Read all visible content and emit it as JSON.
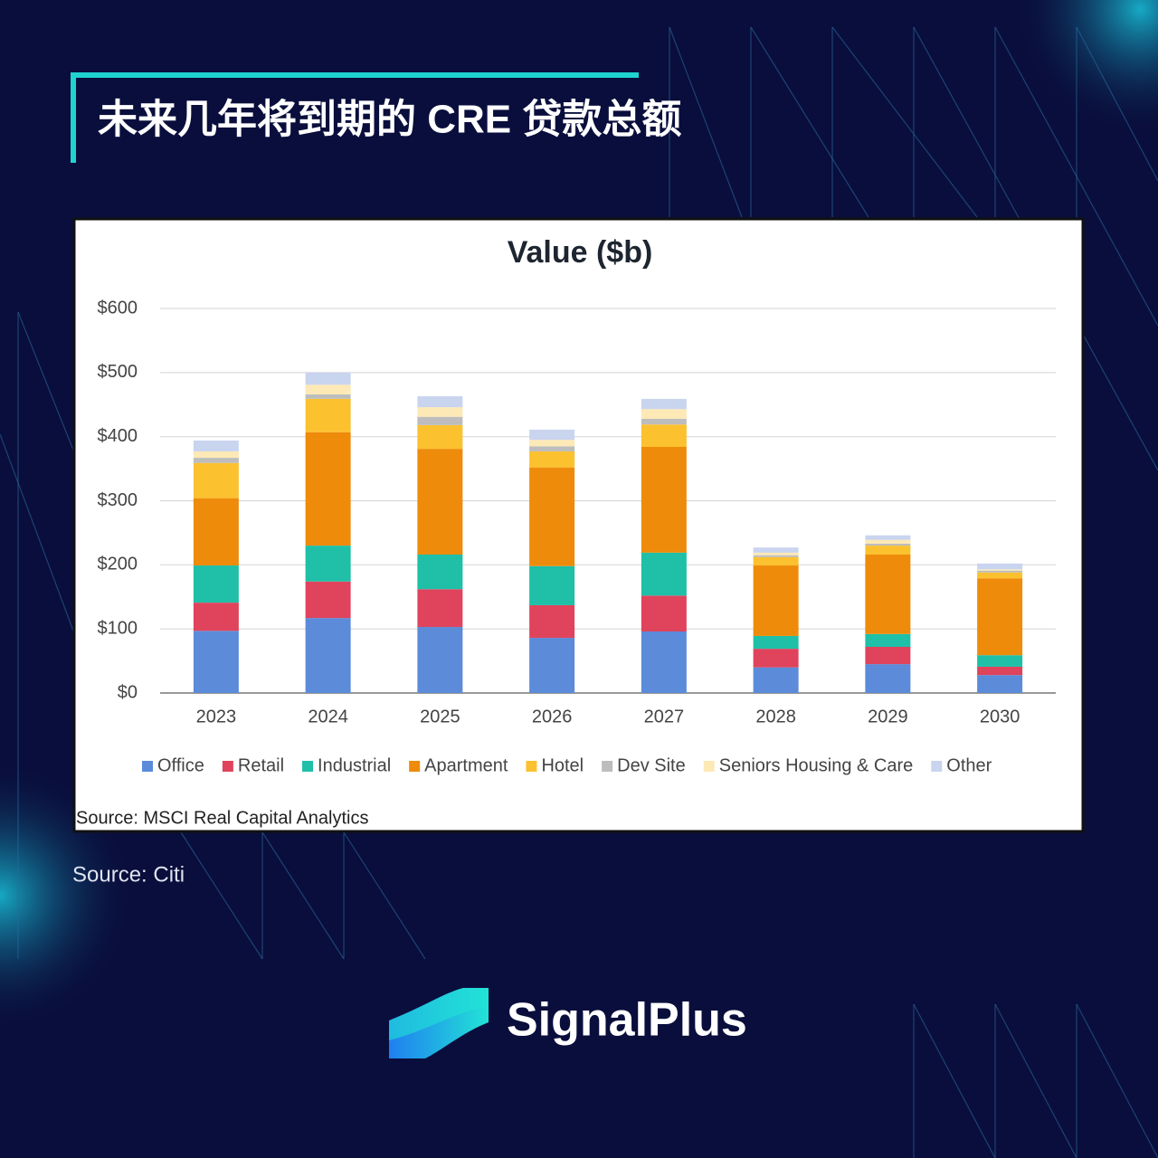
{
  "header": {
    "title": "未来几年将到期的 CRE 贷款总额"
  },
  "chart_data": {
    "type": "stacked_bar",
    "title": "Value ($b)",
    "categories": [
      "2023",
      "2024",
      "2025",
      "2026",
      "2027",
      "2028",
      "2029",
      "2030"
    ],
    "series": [
      {
        "name": "Office",
        "color": "#5b8bd9",
        "values": [
          97,
          117,
          103,
          86,
          96,
          40,
          45,
          28
        ]
      },
      {
        "name": "Retail",
        "color": "#e0435c",
        "values": [
          44,
          57,
          59,
          51,
          56,
          29,
          27,
          13
        ]
      },
      {
        "name": "Industrial",
        "color": "#1fbfa8",
        "values": [
          58,
          56,
          54,
          61,
          67,
          20,
          20,
          18
        ]
      },
      {
        "name": "Apartment",
        "color": "#ee8b0b",
        "values": [
          105,
          177,
          165,
          154,
          165,
          110,
          124,
          120
        ]
      },
      {
        "name": "Hotel",
        "color": "#fcc12f",
        "values": [
          55,
          52,
          37,
          25,
          35,
          13,
          14,
          9
        ]
      },
      {
        "name": "Dev Site",
        "color": "#bdbdbd",
        "values": [
          8,
          7,
          13,
          8,
          9,
          3,
          3,
          3
        ]
      },
      {
        "name": "Seniors Housing & Care",
        "color": "#fde9b5",
        "values": [
          10,
          15,
          15,
          10,
          15,
          4,
          6,
          2
        ]
      },
      {
        "name": "Other",
        "color": "#c9d4ef",
        "values": [
          17,
          19,
          17,
          16,
          16,
          8,
          7,
          9
        ]
      }
    ],
    "ylim": [
      0,
      600
    ],
    "yticks": [
      {
        "value": 0,
        "label": "$0"
      },
      {
        "value": 100,
        "label": "$100"
      },
      {
        "value": 200,
        "label": "$200"
      },
      {
        "value": 300,
        "label": "$300"
      },
      {
        "value": 400,
        "label": "$400"
      },
      {
        "value": 500,
        "label": "$500"
      },
      {
        "value": 600,
        "label": "$600"
      }
    ],
    "grid": true,
    "legend": "bottom",
    "source": "Source: MSCI Real Capital Analytics"
  },
  "footer": {
    "source": "Source: Citi",
    "brand": "SignalPlus"
  }
}
